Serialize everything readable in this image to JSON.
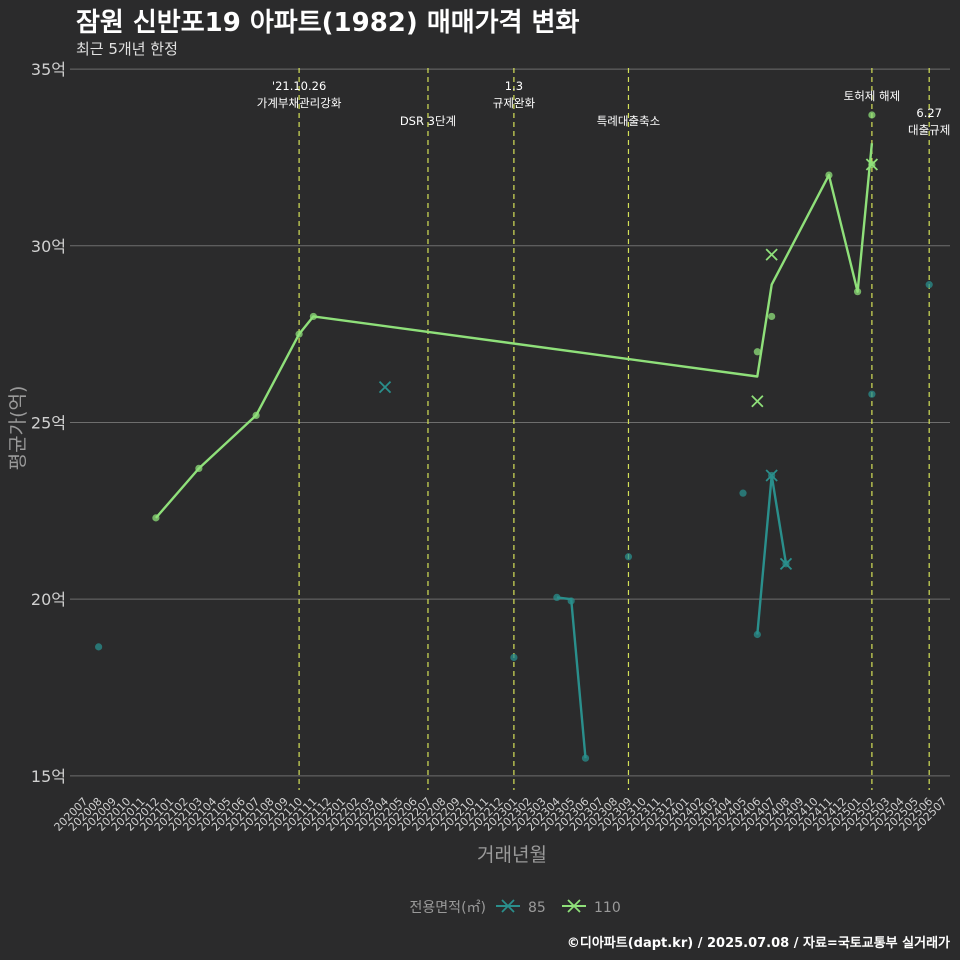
{
  "title": "잠원 신반포19 아파트(1982) 매매가격 변화",
  "subtitle": "최근 5개년 한정",
  "caption": "©디아파트(dapt.kr) / 2025.07.08 / 자료=국토교통부 실거래가",
  "colors": {
    "s85": "#2a8f8c",
    "s110": "#8fe07a",
    "vline": "#d4e157",
    "grid": "#6e6e6e"
  },
  "chart_data": {
    "type": "line",
    "xlabel": "거래년월",
    "ylabel": "평균가(억)",
    "ylim": [
      14.6,
      35.2
    ],
    "y_ticks": [
      {
        "v": 15,
        "label": "15억"
      },
      {
        "v": 20,
        "label": "20억"
      },
      {
        "v": 25,
        "label": "25억"
      },
      {
        "v": 30,
        "label": "30억"
      },
      {
        "v": 35,
        "label": "35억"
      }
    ],
    "x_categories": [
      "202007",
      "202008",
      "202009",
      "202010",
      "202011",
      "202012",
      "202101",
      "202102",
      "202103",
      "202104",
      "202105",
      "202106",
      "202107",
      "202108",
      "202109",
      "202110",
      "202111",
      "202112",
      "202201",
      "202202",
      "202203",
      "202204",
      "202205",
      "202206",
      "202207",
      "202208",
      "202209",
      "202210",
      "202211",
      "202212",
      "202301",
      "202302",
      "202303",
      "202304",
      "202305",
      "202306",
      "202307",
      "202308",
      "202309",
      "202310",
      "202311",
      "202312",
      "202401",
      "202402",
      "202403",
      "202404",
      "202405",
      "202406",
      "202407",
      "202408",
      "202409",
      "202410",
      "202411",
      "202412",
      "202501",
      "202502",
      "202503",
      "202504",
      "202505",
      "202506",
      "202507"
    ],
    "legend": {
      "title": "전용면적(㎡)",
      "items": [
        "85",
        "110"
      ]
    },
    "series": [
      {
        "name": "85",
        "line": [
          [
            "202304",
            20.05
          ],
          [
            "202305",
            20.0
          ],
          [
            "202306",
            15.5
          ]
        ],
        "line2": [
          [
            "202406",
            19.0
          ],
          [
            "202407",
            23.5
          ],
          [
            "202408",
            21.0
          ]
        ],
        "points": [
          [
            "202304",
            20.05
          ],
          [
            "202305",
            19.95
          ],
          [
            "202306",
            15.5
          ],
          [
            "202405",
            23.0
          ],
          [
            "202406",
            19.0
          ],
          [
            "202407",
            23.5
          ],
          [
            "202408",
            21.0
          ],
          [
            "202502",
            25.8
          ],
          [
            "202506",
            28.9
          ],
          [
            "202008",
            18.65
          ],
          [
            "202301",
            18.35
          ],
          [
            "202309",
            21.2
          ]
        ],
        "x_marks": [
          [
            "202204",
            26.0
          ],
          [
            "202407",
            23.5
          ],
          [
            "202408",
            21.0
          ]
        ]
      },
      {
        "name": "110",
        "line": [
          [
            "202012",
            22.3
          ],
          [
            "202103",
            23.7
          ],
          [
            "202107",
            25.2
          ],
          [
            "202110",
            27.5
          ],
          [
            "202111",
            28.0
          ],
          [
            "202406",
            26.3
          ],
          [
            "202407",
            28.9
          ],
          [
            "202411",
            32.0
          ],
          [
            "202501",
            28.7
          ],
          [
            "202502",
            32.9
          ]
        ],
        "points": [
          [
            "202012",
            22.3
          ],
          [
            "202103",
            23.7
          ],
          [
            "202107",
            25.2
          ],
          [
            "202110",
            27.5
          ],
          [
            "202111",
            28.0
          ],
          [
            "202406",
            27.0
          ],
          [
            "202407",
            28.0
          ],
          [
            "202411",
            32.0
          ],
          [
            "202501",
            28.7
          ],
          [
            "202502",
            33.7
          ],
          [
            "202502",
            32.3
          ]
        ],
        "x_marks": [
          [
            "202406",
            25.6
          ],
          [
            "202407",
            29.75
          ],
          [
            "202502",
            32.3
          ]
        ]
      }
    ],
    "annotations": [
      {
        "x": "202110",
        "lines": [
          "'21.10.26",
          "가계부채관리강화"
        ],
        "level": 0
      },
      {
        "x": "202207",
        "lines": [
          "DSR 3단계"
        ],
        "level": 1
      },
      {
        "x": "202301",
        "lines": [
          "1.3",
          "규제완화"
        ],
        "level": 0
      },
      {
        "x": "202309",
        "lines": [
          "특례대출축소"
        ],
        "level": 1
      },
      {
        "x": "202502",
        "lines": [
          "토허제 해제"
        ],
        "level": 2
      },
      {
        "x": "202506",
        "lines": [
          "6.27",
          "대출규제"
        ],
        "level": 3
      }
    ]
  }
}
